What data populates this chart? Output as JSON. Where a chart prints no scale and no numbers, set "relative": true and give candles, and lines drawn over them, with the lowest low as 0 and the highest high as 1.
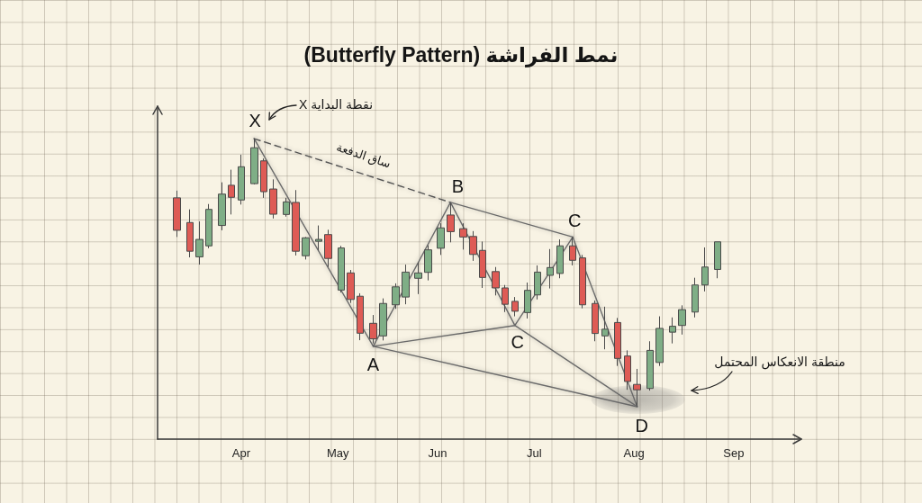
{
  "chart_data": {
    "type": "candlestick",
    "title": "نمط الفراشة (Butterfly Pattern)",
    "relative": true,
    "x": [
      "--03-12",
      "--03-16",
      "--03-19",
      "--03-22",
      "--03-26",
      "--03-29",
      "--04-01",
      "--04-05",
      "--04-08",
      "--04-11",
      "--04-15",
      "--04-18",
      "--04-21",
      "--04-25",
      "--04-28",
      "--05-02",
      "--05-05",
      "--05-08",
      "--05-12",
      "--05-15",
      "--05-19",
      "--05-22",
      "--05-26",
      "--05-29",
      "--06-02",
      "--06-05",
      "--06-09",
      "--06-12",
      "--06-15",
      "--06-19",
      "--06-22",
      "--06-25",
      "--06-29",
      "--07-02",
      "--07-06",
      "--07-09",
      "--07-13",
      "--07-16",
      "--07-20",
      "--07-23",
      "--07-27",
      "--07-30",
      "--08-02",
      "--08-06",
      "--08-09",
      "--08-13",
      "--08-16",
      "--08-20",
      "--08-23",
      "--08-27"
    ],
    "ohlc": [
      [
        0.779,
        0.806,
        0.633,
        0.658
      ],
      [
        0.687,
        0.736,
        0.557,
        0.58
      ],
      [
        0.559,
        0.691,
        0.53,
        0.624
      ],
      [
        0.6,
        0.756,
        0.591,
        0.736
      ],
      [
        0.676,
        0.837,
        0.658,
        0.793
      ],
      [
        0.826,
        0.884,
        0.717,
        0.781
      ],
      [
        0.771,
        0.94,
        0.754,
        0.895
      ],
      [
        0.832,
        1.0,
        0.829,
        0.966
      ],
      [
        0.917,
        0.926,
        0.779,
        0.802
      ],
      [
        0.812,
        0.848,
        0.702,
        0.718
      ],
      [
        0.717,
        0.779,
        0.709,
        0.764
      ],
      [
        0.762,
        0.808,
        0.564,
        0.58
      ],
      [
        0.563,
        0.633,
        0.549,
        0.63
      ],
      [
        0.617,
        0.676,
        0.583,
        0.624
      ],
      [
        0.642,
        0.66,
        0.521,
        0.553
      ],
      [
        0.435,
        0.6,
        0.426,
        0.592
      ],
      [
        0.499,
        0.51,
        0.387,
        0.4
      ],
      [
        0.412,
        0.423,
        0.248,
        0.274
      ],
      [
        0.311,
        0.342,
        0.236,
        0.253
      ],
      [
        0.264,
        0.404,
        0.247,
        0.385
      ],
      [
        0.38,
        0.46,
        0.365,
        0.447
      ],
      [
        0.409,
        0.53,
        0.382,
        0.502
      ],
      [
        0.479,
        0.538,
        0.42,
        0.499
      ],
      [
        0.501,
        0.602,
        0.471,
        0.585
      ],
      [
        0.591,
        0.684,
        0.566,
        0.667
      ],
      [
        0.715,
        0.759,
        0.613,
        0.653
      ],
      [
        0.664,
        0.684,
        0.586,
        0.633
      ],
      [
        0.635,
        0.655,
        0.544,
        0.568
      ],
      [
        0.583,
        0.616,
        0.443,
        0.482
      ],
      [
        0.504,
        0.521,
        0.415,
        0.443
      ],
      [
        0.443,
        0.454,
        0.353,
        0.382
      ],
      [
        0.393,
        0.409,
        0.337,
        0.356
      ],
      [
        0.351,
        0.463,
        0.329,
        0.434
      ],
      [
        0.417,
        0.527,
        0.4,
        0.502
      ],
      [
        0.49,
        0.588,
        0.441,
        0.519
      ],
      [
        0.497,
        0.624,
        0.479,
        0.6
      ],
      [
        0.6,
        0.633,
        0.527,
        0.546
      ],
      [
        0.555,
        0.566,
        0.367,
        0.38
      ],
      [
        0.385,
        0.396,
        0.244,
        0.273
      ],
      [
        0.264,
        0.373,
        0.214,
        0.289
      ],
      [
        0.314,
        0.331,
        0.152,
        0.18
      ],
      [
        0.189,
        0.21,
        0.063,
        0.094
      ],
      [
        0.083,
        0.141,
        0.0,
        0.063
      ],
      [
        0.068,
        0.244,
        0.06,
        0.21
      ],
      [
        0.165,
        0.337,
        0.152,
        0.292
      ],
      [
        0.278,
        0.333,
        0.236,
        0.3
      ],
      [
        0.303,
        0.378,
        0.269,
        0.362
      ],
      [
        0.353,
        0.481,
        0.333,
        0.454
      ],
      [
        0.454,
        0.594,
        0.43,
        0.521
      ],
      [
        0.512,
        0.615,
        0.479,
        0.615
      ]
    ],
    "colors": [
      "#de5b55",
      "#de5b55",
      "#7fae86",
      "#7fae86",
      "#7fae86",
      "#de5b55",
      "#7fae86",
      "#7fae86",
      "#de5b55",
      "#de5b55",
      "#7fae86",
      "#de5b55",
      "#7fae86",
      "#7fae86",
      "#de5b55",
      "#7fae86",
      "#de5b55",
      "#de5b55",
      "#de5b55",
      "#7fae86",
      "#7fae86",
      "#7fae86",
      "#7fae86",
      "#7fae86",
      "#7fae86",
      "#de5b55",
      "#de5b55",
      "#de5b55",
      "#de5b55",
      "#de5b55",
      "#de5b55",
      "#de5b55",
      "#7fae86",
      "#7fae86",
      "#7fae86",
      "#7fae86",
      "#de5b55",
      "#de5b55",
      "#de5b55",
      "#7fae86",
      "#de5b55",
      "#de5b55",
      "#de5b55",
      "#7fae86",
      "#7fae86",
      "#7fae86",
      "#7fae86",
      "#7fae86",
      "#7fae86",
      "#7fae86"
    ],
    "xlim": [
      "--03-06",
      "--09-22"
    ],
    "xticks": [
      {
        "value": "--04-01",
        "label": "Apr"
      },
      {
        "value": "--05-01",
        "label": "May"
      },
      {
        "value": "--06-01",
        "label": "Jun"
      },
      {
        "value": "--07-01",
        "label": "Jul"
      },
      {
        "value": "--08-01",
        "label": "Aug"
      },
      {
        "value": "--09-01",
        "label": "Sep"
      }
    ],
    "series": [
      {
        "type": "line",
        "color": "#6b6b6b",
        "line_style": "solid",
        "x": [
          "--04-05",
          "--05-12",
          "--06-05",
          "--06-25",
          "--07-13",
          "--08-02"
        ],
        "values": [
          1.0,
          0.225,
          0.762,
          0.303,
          0.633,
          0.0
        ]
      },
      {
        "type": "line",
        "color": "#555555",
        "line_style": "dashed",
        "x": [
          "--04-05",
          "--06-05"
        ],
        "values": [
          1.0,
          0.762
        ]
      },
      {
        "type": "line",
        "color": "#6b6b6b",
        "line_style": "solid",
        "x": [
          "--06-05",
          "--07-13"
        ],
        "values": [
          0.762,
          0.633
        ]
      },
      {
        "type": "line",
        "color": "#6b6b6b",
        "line_style": "solid",
        "x": [
          "--05-12",
          "--06-25"
        ],
        "values": [
          0.225,
          0.303
        ]
      },
      {
        "type": "line",
        "color": "#6b6b6b",
        "line_style": "solid",
        "x": [
          "--05-12",
          "--08-02"
        ],
        "values": [
          0.225,
          0.0
        ]
      },
      {
        "type": "line",
        "color": "#6b6b6b",
        "line_style": "solid",
        "x": [
          "--06-25",
          "--08-02"
        ],
        "values": [
          0.303,
          0.0
        ]
      }
    ],
    "annotations": [
      {
        "text": "X",
        "x": "--04-05",
        "y": 1.0
      },
      {
        "text": "A",
        "x": "--05-12",
        "y": 0.225
      },
      {
        "text": "B",
        "x": "--06-05",
        "y": 0.762
      },
      {
        "text": "C",
        "x": "--06-25",
        "y": 0.303
      },
      {
        "text": "C",
        "x": "--07-13",
        "y": 0.633
      },
      {
        "text": "D",
        "x": "--08-02",
        "y": 0.0
      },
      "نقطة البداية X",
      {
        "text": "ساق الدفعة",
        "x": "--05-09",
        "y": 0.867
      },
      "منطقة الانعكاس المحتمل"
    ]
  }
}
